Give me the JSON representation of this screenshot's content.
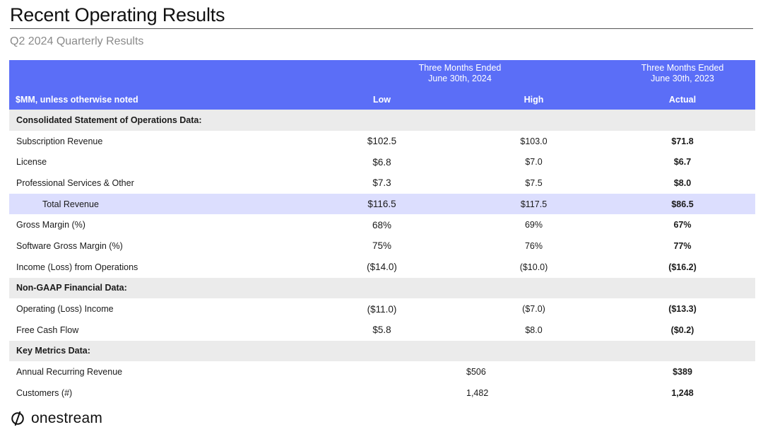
{
  "header": {
    "title": "Recent Operating Results",
    "subtitle": "Q2 2024 Quarterly Results"
  },
  "table": {
    "group_headers": {
      "guidance": "Three Months Ended\nJune 30th, 2024",
      "prior": "Three Months Ended\nJune 30th, 2023"
    },
    "column_headers": {
      "label": "$MM, unless otherwise noted",
      "low": "Low",
      "high": "High",
      "actual": "Actual"
    },
    "rows": [
      {
        "type": "section",
        "label": "Consolidated Statement of Operations Data:"
      },
      {
        "type": "row",
        "label": "Subscription Revenue",
        "low": "$102.5",
        "high": "$103.0",
        "actual": "$71.8"
      },
      {
        "type": "row",
        "label": "License",
        "low": "$6.8",
        "high": "$7.0",
        "actual": "$6.7"
      },
      {
        "type": "row",
        "label": "Professional Services & Other",
        "low": "$7.3",
        "high": "$7.5",
        "actual": "$8.0"
      },
      {
        "type": "total",
        "label": "Total Revenue",
        "low": "$116.5",
        "high": "$117.5",
        "actual": "$86.5"
      },
      {
        "type": "row",
        "label": "Gross Margin (%)",
        "low": "68%",
        "high": "69%",
        "actual": "67%"
      },
      {
        "type": "row",
        "label": "Software Gross Margin (%)",
        "low": "75%",
        "high": "76%",
        "actual": "77%"
      },
      {
        "type": "row",
        "label": "Income (Loss) from Operations",
        "low": "($14.0)",
        "high": "($10.0)",
        "actual": "($16.2)"
      },
      {
        "type": "section",
        "label": "Non-GAAP Financial Data:"
      },
      {
        "type": "row",
        "label": "Operating (Loss) Income",
        "low": "($11.0)",
        "high": "($7.0)",
        "actual": "($13.3)"
      },
      {
        "type": "row",
        "label": "Free Cash Flow",
        "low": "$5.8",
        "high": "$8.0",
        "actual": "($0.2)"
      },
      {
        "type": "section",
        "label": "Key Metrics Data:"
      },
      {
        "type": "metric",
        "label": "Annual Recurring Revenue",
        "low": "",
        "high": "$506",
        "actual": "$389"
      },
      {
        "type": "metric",
        "label": "Customers (#)",
        "low": "",
        "high": "1,482",
        "actual": "1,248"
      }
    ]
  },
  "footer": {
    "brand": "onestream",
    "logo_icon": "onestream-logo-icon"
  },
  "colors": {
    "header_band": "#5b6ef7",
    "section_band": "#ebebeb",
    "total_band": "#dcdefe"
  }
}
